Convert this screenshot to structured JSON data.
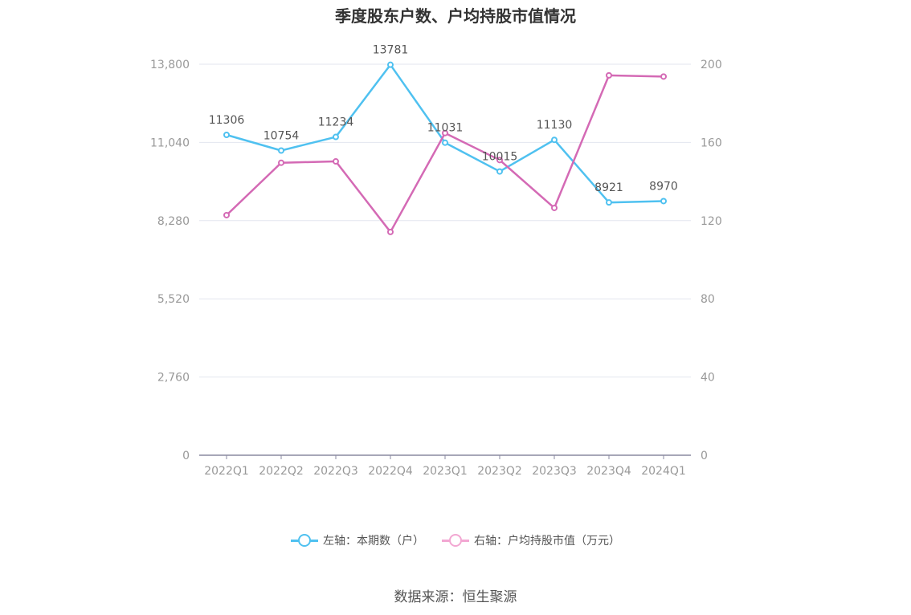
{
  "chart_data": {
    "type": "line",
    "title": "季度股东户数、户均持股市值情况",
    "categories": [
      "2022Q1",
      "2022Q2",
      "2022Q3",
      "2022Q4",
      "2023Q1",
      "2023Q2",
      "2023Q3",
      "2023Q4",
      "2024Q1"
    ],
    "left_axis": {
      "ylim": [
        0,
        13800
      ],
      "ticks": [
        0,
        2760,
        5520,
        8280,
        11040,
        13800
      ],
      "tick_labels": [
        "0",
        "2,760",
        "5,520",
        "8,280",
        "11,040",
        "13,800"
      ]
    },
    "right_axis": {
      "ylim": [
        0,
        200
      ],
      "ticks": [
        0,
        40,
        80,
        120,
        160,
        200
      ],
      "tick_labels": [
        "0",
        "40",
        "80",
        "120",
        "160",
        "200"
      ]
    },
    "series": [
      {
        "name": "左轴：本期数（户）",
        "axis": "left",
        "color": "#4fc1f0",
        "values": [
          11306,
          10754,
          11234,
          13781,
          11031,
          10015,
          11130,
          8921,
          8970
        ],
        "labels": [
          "11306",
          "10754",
          "11234",
          "13781",
          "11031",
          "10015",
          "11130",
          "8921",
          "8970"
        ]
      },
      {
        "name": "右轴：户均持股市值（万元）",
        "axis": "right",
        "color": "#d46ab5",
        "values": [
          122.8,
          149.6,
          150.3,
          114.2,
          164.8,
          151.0,
          126.5,
          194.3,
          193.7
        ]
      }
    ],
    "grid": true,
    "legend_position": "bottom"
  },
  "source": "数据来源：恒生聚源"
}
